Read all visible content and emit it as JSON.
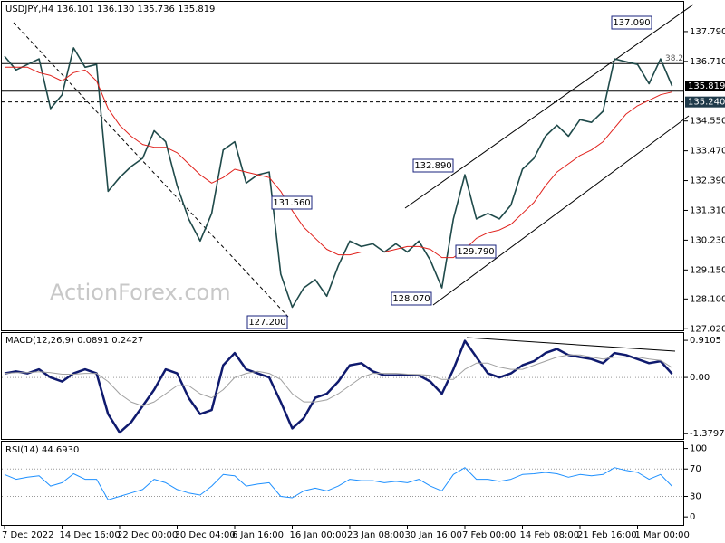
{
  "chart_data": [
    {
      "type": "line",
      "title": "USDJPY,H4  136.101 136.130 135.736 135.819",
      "categories": [
        "7 Dec 2022",
        null,
        null,
        null,
        null,
        "14 Dec 16:00",
        null,
        null,
        null,
        null,
        "22 Dec 00:00",
        null,
        null,
        null,
        null,
        "30 Dec 04:00",
        null,
        null,
        null,
        null,
        "6 Jan 16:00",
        null,
        null,
        null,
        null,
        "16 Jan 00:00",
        null,
        null,
        null,
        null,
        "23 Jan 08:00",
        null,
        null,
        null,
        null,
        "30 Jan 16:00",
        null,
        null,
        null,
        null,
        "7 Feb 00:00",
        null,
        null,
        null,
        null,
        "14 Feb 08:00",
        null,
        null,
        null,
        null,
        "21 Feb 16:00",
        null,
        null,
        null,
        null,
        "1 Mar 00:00",
        null,
        null,
        null
      ],
      "series": [
        {
          "color": "#1f4a4a",
          "values": [
            136.9,
            136.4,
            136.6,
            136.8,
            135.0,
            135.5,
            137.2,
            136.5,
            136.6,
            132.0,
            132.5,
            132.9,
            133.2,
            134.2,
            133.8,
            132.2,
            131.0,
            130.2,
            131.2,
            133.5,
            133.8,
            132.3,
            132.6,
            132.7,
            129.0,
            127.8,
            128.5,
            128.8,
            128.2,
            129.3,
            130.2,
            130.0,
            130.1,
            129.8,
            130.1,
            129.8,
            130.2,
            129.5,
            128.5,
            131.0,
            132.6,
            131.0,
            131.2,
            131.0,
            131.5,
            132.8,
            133.2,
            134.0,
            134.4,
            134.0,
            134.6,
            134.5,
            134.9,
            136.8,
            136.7,
            136.6,
            135.9,
            136.8,
            135.819
          ]
        },
        {
          "color": "#e0201b",
          "values": [
            136.5,
            136.5,
            136.5,
            136.3,
            136.2,
            136.0,
            136.3,
            136.4,
            136.0,
            135.0,
            134.4,
            134.0,
            133.7,
            133.6,
            133.6,
            133.4,
            133.0,
            132.6,
            132.3,
            132.5,
            132.8,
            132.7,
            132.6,
            132.5,
            132.0,
            131.3,
            130.7,
            130.3,
            129.9,
            129.7,
            129.7,
            129.8,
            129.8,
            129.8,
            129.9,
            130.0,
            130.0,
            129.9,
            129.6,
            129.6,
            129.9,
            130.3,
            130.5,
            130.6,
            130.8,
            131.2,
            131.6,
            132.2,
            132.7,
            133.0,
            133.3,
            133.5,
            133.8,
            134.3,
            134.8,
            135.1,
            135.3,
            135.5,
            135.6
          ]
        }
      ],
      "ylim": [
        126.93,
        138.87
      ],
      "yticks": [
        {
          "value": 137.79,
          "label": "137.790"
        },
        {
          "value": 136.71,
          "label": "136.710"
        },
        {
          "value": 134.55,
          "label": "134.550"
        },
        {
          "value": 133.47,
          "label": "133.470"
        },
        {
          "value": 132.39,
          "label": "132.390"
        },
        {
          "value": 131.31,
          "label": "131.310"
        },
        {
          "value": 130.23,
          "label": "130.230"
        },
        {
          "value": 129.15,
          "label": "129.150"
        },
        {
          "value": 128.1,
          "label": "128.100"
        },
        {
          "value": 127.02,
          "label": "127.020"
        }
      ],
      "hlines": [
        136.63,
        135.63
      ],
      "hline_note": "38.2",
      "marker_levels": [
        {
          "value": 135.819,
          "label": "135.819"
        },
        {
          "value": 135.24,
          "label": "135.240"
        }
      ],
      "annotations": [
        {
          "value": 137.09,
          "label": "137.090"
        },
        {
          "value": 132.89,
          "label": "132.890"
        },
        {
          "value": 131.56,
          "label": "131.560"
        },
        {
          "value": 129.79,
          "label": "129.790"
        },
        {
          "value": 128.07,
          "label": "128.070"
        },
        {
          "value": 127.2,
          "label": "127.200"
        }
      ],
      "watermark": "ActionForex.com"
    },
    {
      "type": "line",
      "title": "MACD(12,26,9) 0.0891 0.2427",
      "series": [
        {
          "color": "#0f1a6e",
          "values": [
            0.1,
            0.15,
            0.1,
            0.2,
            0.0,
            -0.1,
            0.1,
            0.2,
            0.1,
            -0.9,
            -1.35,
            -1.1,
            -0.7,
            -0.3,
            0.2,
            0.1,
            -0.5,
            -0.9,
            -0.8,
            0.3,
            0.6,
            0.2,
            0.1,
            0.0,
            -0.6,
            -1.25,
            -1.0,
            -0.5,
            -0.4,
            -0.1,
            0.3,
            0.35,
            0.15,
            0.05,
            0.05,
            0.05,
            0.05,
            -0.1,
            -0.4,
            0.2,
            0.9,
            0.5,
            0.1,
            0.0,
            0.1,
            0.3,
            0.4,
            0.6,
            0.7,
            0.55,
            0.5,
            0.45,
            0.35,
            0.6,
            0.55,
            0.45,
            0.35,
            0.4,
            0.0891
          ]
        },
        {
          "color": "#a0a0a0",
          "values": [
            0.1,
            0.12,
            0.12,
            0.14,
            0.12,
            0.08,
            0.08,
            0.1,
            0.1,
            -0.1,
            -0.4,
            -0.6,
            -0.7,
            -0.6,
            -0.4,
            -0.2,
            -0.2,
            -0.4,
            -0.5,
            -0.3,
            0.0,
            0.1,
            0.15,
            0.1,
            -0.05,
            -0.4,
            -0.6,
            -0.6,
            -0.55,
            -0.4,
            -0.2,
            0.0,
            0.1,
            0.1,
            0.1,
            0.08,
            0.07,
            0.05,
            -0.05,
            -0.05,
            0.2,
            0.35,
            0.35,
            0.25,
            0.2,
            0.2,
            0.3,
            0.4,
            0.5,
            0.55,
            0.55,
            0.5,
            0.45,
            0.5,
            0.5,
            0.5,
            0.45,
            0.42,
            0.2427
          ]
        }
      ],
      "ylim": [
        -1.53,
        1.09
      ],
      "yticks": [
        {
          "value": 0.9105,
          "label": "0.9105"
        },
        {
          "value": 0,
          "label": "0.00"
        },
        {
          "value": -1.3797,
          "label": "-1.3797"
        }
      ]
    },
    {
      "type": "line",
      "title": "RSI(14) 44.6930",
      "series": [
        {
          "color": "#1e90ff",
          "values": [
            62,
            55,
            58,
            60,
            45,
            50,
            63,
            55,
            55,
            25,
            30,
            35,
            40,
            55,
            50,
            40,
            35,
            32,
            45,
            62,
            60,
            45,
            48,
            50,
            30,
            28,
            38,
            42,
            38,
            45,
            55,
            53,
            53,
            50,
            52,
            50,
            55,
            45,
            38,
            62,
            72,
            55,
            55,
            52,
            55,
            62,
            63,
            65,
            63,
            58,
            62,
            60,
            62,
            72,
            68,
            65,
            55,
            62,
            44.693
          ]
        }
      ],
      "ylim": [
        -13,
        110
      ],
      "yticks": [
        100,
        70,
        30,
        0
      ]
    }
  ]
}
